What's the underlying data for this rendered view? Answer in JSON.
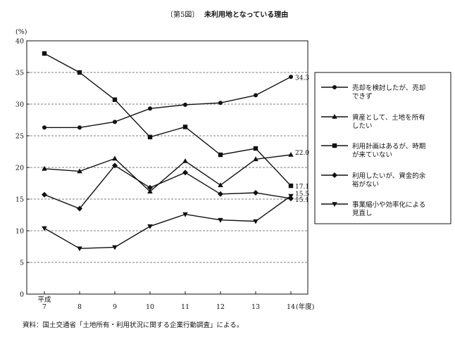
{
  "title_bracket": "〔第5図〕",
  "title": "未利用地となっている理由",
  "source": "資料：国土交通省「土地所有・利用状況に関する企業行動調査」による。",
  "chart_data": {
    "type": "line",
    "y_unit": "(%)",
    "x_unit": "(年度)",
    "era_label": "平成",
    "categories": [
      "7",
      "8",
      "9",
      "10",
      "11",
      "12",
      "13",
      "14"
    ],
    "ylim": [
      0,
      40
    ],
    "yticks": [
      0,
      5,
      10,
      15,
      20,
      25,
      30,
      35,
      40
    ],
    "grid": "dashed-horizontal",
    "legend_position": "right",
    "series": [
      {
        "name_lines": [
          "売却を検討したが、売却",
          "できず"
        ],
        "marker": "circle",
        "values": [
          26.3,
          26.3,
          27.2,
          29.3,
          29.9,
          30.2,
          31.4,
          34.3
        ],
        "end_label": "34.3"
      },
      {
        "name_lines": [
          "資産として、土地を所有",
          "したい"
        ],
        "marker": "triangle-up",
        "values": [
          19.8,
          19.4,
          21.4,
          16.2,
          21.0,
          17.2,
          21.3,
          22.0
        ],
        "end_label": "22.0"
      },
      {
        "name_lines": [
          "利用計画はあるが、時期",
          "が来ていない"
        ],
        "marker": "square",
        "values": [
          38.0,
          35.0,
          30.7,
          24.8,
          26.4,
          22.0,
          23.0,
          17.1
        ],
        "end_label": "17.1"
      },
      {
        "name_lines": [
          "利用したいが、資金的余",
          "裕がない"
        ],
        "marker": "diamond",
        "values": [
          15.7,
          13.5,
          20.3,
          16.8,
          19.2,
          15.8,
          16.0,
          15.1
        ],
        "end_label": "15.1"
      },
      {
        "name_lines": [
          "事業縮小や効率化による",
          "見直し"
        ],
        "marker": "triangle-down",
        "values": [
          10.4,
          7.2,
          7.4,
          10.7,
          12.6,
          11.7,
          11.5,
          15.5
        ],
        "end_label": "15.5"
      }
    ]
  }
}
